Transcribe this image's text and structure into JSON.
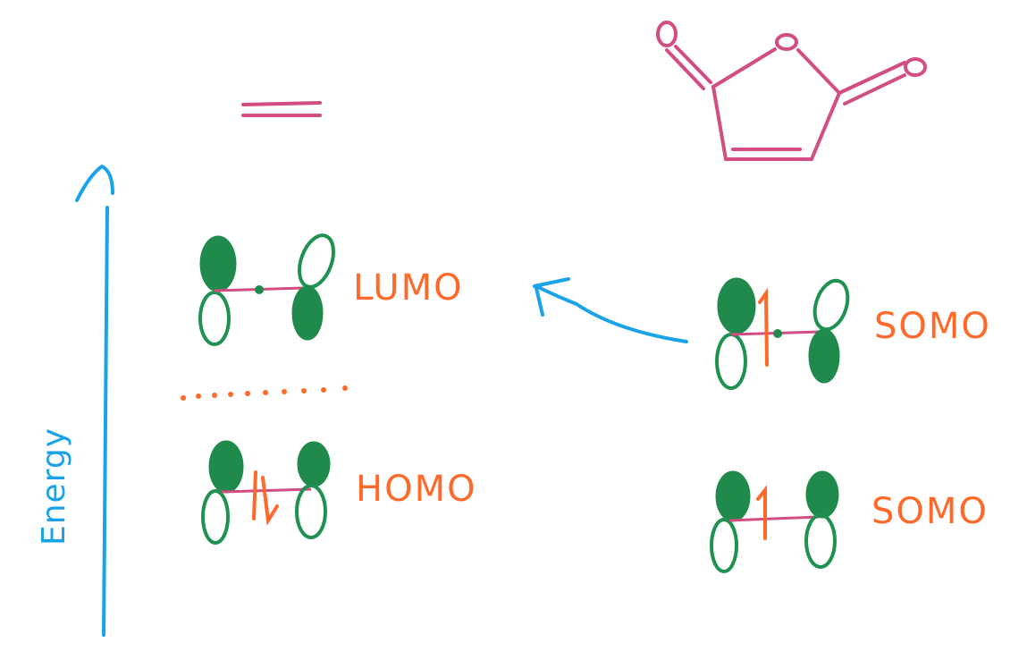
{
  "colors": {
    "molecule": "#d14d82",
    "orbital": "#1f8a4c",
    "label": "#ff6a2b",
    "axis": "#1aa3e8"
  },
  "axis": {
    "label": "Energy"
  },
  "molecule": {
    "atom_label": "O"
  },
  "orbitals": {
    "lumo": {
      "label": "LUMO"
    },
    "homo": {
      "label": "HOMO"
    },
    "somo_upper": {
      "label": "SOMO"
    },
    "somo_lower": {
      "label": "SOMO"
    }
  }
}
